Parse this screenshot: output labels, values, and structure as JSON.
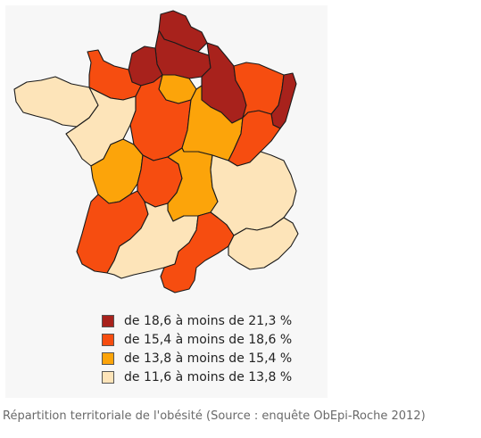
{
  "colors": {
    "class_1": "#a8221c",
    "class_2": "#f64d10",
    "class_3": "#fca40a",
    "class_4": "#fde4b9"
  },
  "legend": {
    "items": [
      {
        "label": "de 18,6 à moins de 21,3 %",
        "color": "#a8221c"
      },
      {
        "label": "de 15,4 à moins de 18,6 %",
        "color": "#f64d10"
      },
      {
        "label": "de 13,8 à moins de 15,4 %",
        "color": "#fca40a"
      },
      {
        "label": "de 11,6 à moins de 13,8 %",
        "color": "#fde4b9"
      }
    ]
  },
  "regions": [
    {
      "id": "nord-pas-de-calais",
      "class": 1
    },
    {
      "id": "picardie",
      "class": 1
    },
    {
      "id": "haute-normandie",
      "class": 1
    },
    {
      "id": "champagne-ardenne",
      "class": 1
    },
    {
      "id": "alsace",
      "class": 1
    },
    {
      "id": "basse-normandie",
      "class": 2
    },
    {
      "id": "lorraine",
      "class": 2
    },
    {
      "id": "centre",
      "class": 2
    },
    {
      "id": "franche-comte",
      "class": 2
    },
    {
      "id": "limousin",
      "class": 2
    },
    {
      "id": "aquitaine",
      "class": 2
    },
    {
      "id": "languedoc-roussillon",
      "class": 2
    },
    {
      "id": "ile-de-france",
      "class": 3
    },
    {
      "id": "bourgogne",
      "class": 3
    },
    {
      "id": "poitou-charentes",
      "class": 3
    },
    {
      "id": "auvergne",
      "class": 3
    },
    {
      "id": "bretagne",
      "class": 4
    },
    {
      "id": "pays-de-la-loire",
      "class": 4
    },
    {
      "id": "rhone-alpes",
      "class": 4
    },
    {
      "id": "midi-pyrenees",
      "class": 4
    },
    {
      "id": "paca",
      "class": 4
    },
    {
      "id": "corse",
      "class": 2
    }
  ],
  "caption": "Répartition territoriale de l'obésité (Source : enquête ObEpi-Roche 2012)"
}
